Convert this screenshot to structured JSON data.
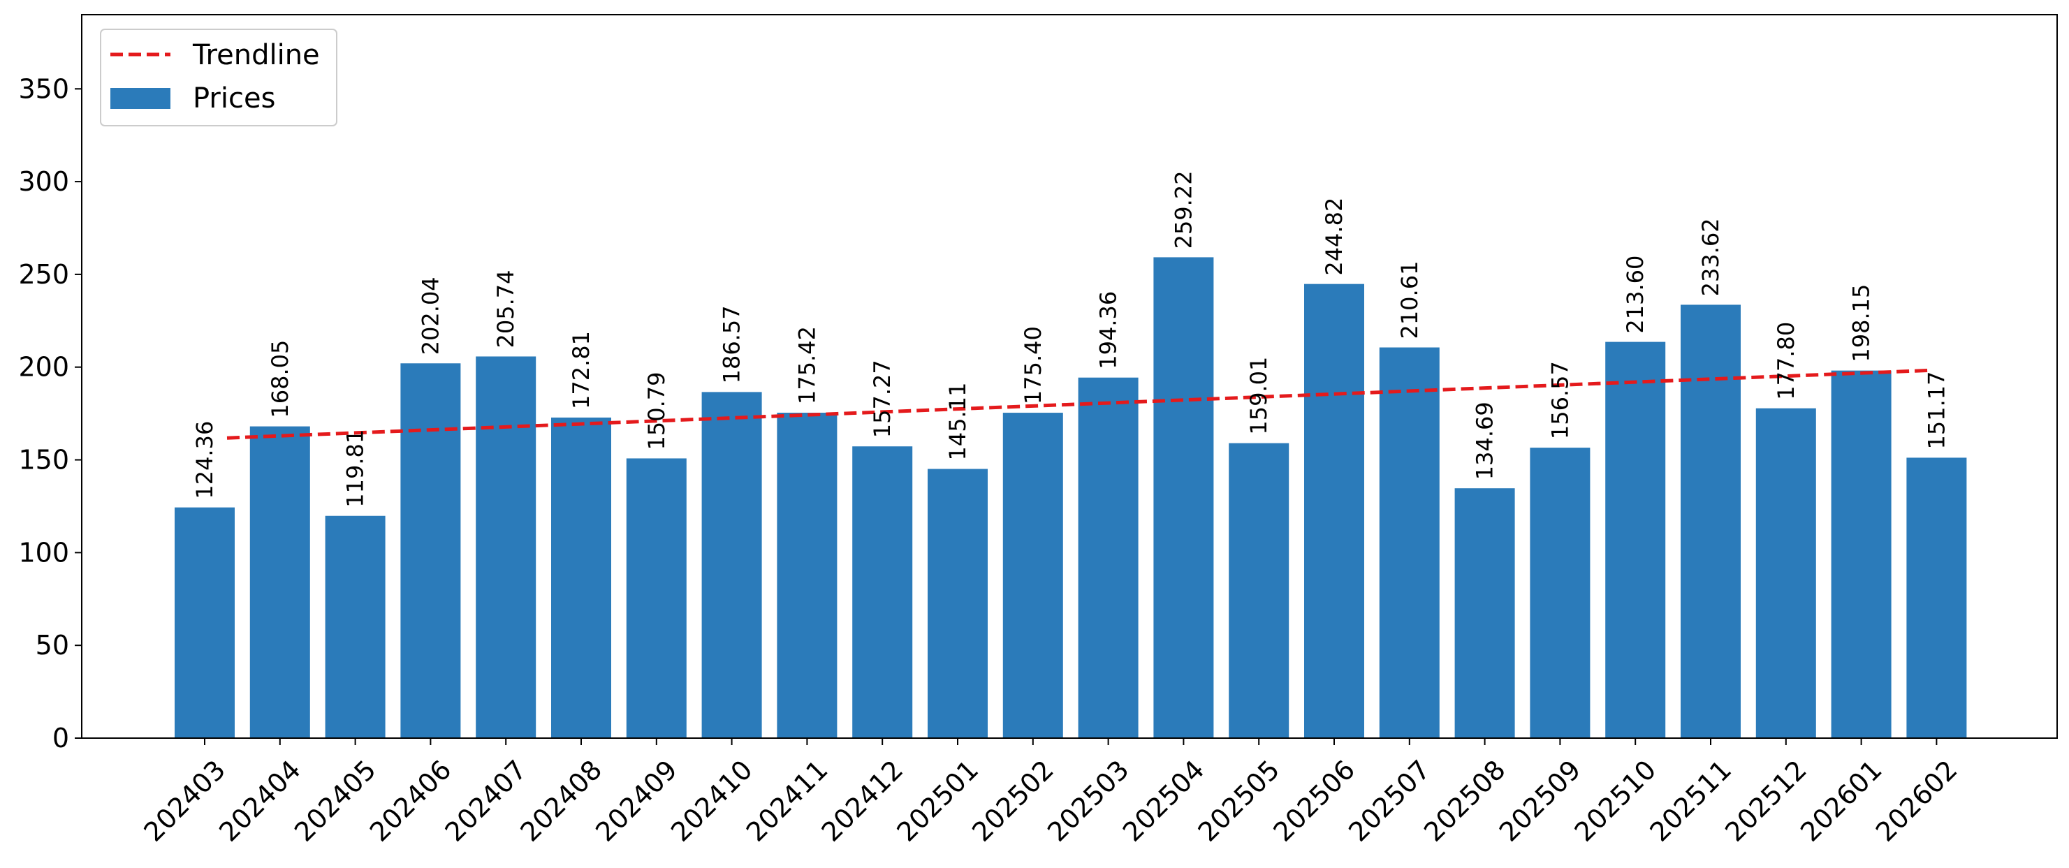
{
  "chart_data": {
    "type": "bar",
    "title": "",
    "xlabel": "",
    "ylabel": "",
    "ylim": [
      0,
      390
    ],
    "yticks": [
      0,
      50,
      100,
      150,
      200,
      250,
      300,
      350
    ],
    "grid": false,
    "legend_position": "top-left",
    "categories": [
      "202403",
      "202404",
      "202405",
      "202406",
      "202407",
      "202408",
      "202409",
      "202410",
      "202411",
      "202412",
      "202501",
      "202502",
      "202503",
      "202504",
      "202505",
      "202506",
      "202507",
      "202508",
      "202509",
      "202510",
      "202511",
      "202512",
      "202601",
      "202602"
    ],
    "series": [
      {
        "name": "Prices",
        "color": "#2b7bba",
        "values": [
          124.36,
          168.05,
          119.81,
          202.04,
          205.74,
          172.81,
          150.79,
          186.57,
          175.42,
          157.27,
          145.11,
          175.4,
          194.36,
          259.22,
          159.01,
          244.82,
          210.61,
          134.69,
          156.57,
          213.6,
          233.62,
          177.8,
          198.15,
          151.17
        ],
        "labels": [
          "124.36",
          "168.05",
          "119.81",
          "202.04",
          "205.74",
          "172.81",
          "150.79",
          "186.57",
          "175.42",
          "157.27",
          "145.11",
          "175.40",
          "194.36",
          "259.22",
          "159.01",
          "244.82",
          "210.61",
          "134.69",
          "156.57",
          "213.60",
          "233.62",
          "177.80",
          "198.15",
          "151.17"
        ]
      }
    ],
    "trendline": {
      "name": "Trendline",
      "color": "#e41a1c",
      "style": "dashed",
      "start": 161.8,
      "end": 198.3
    }
  }
}
